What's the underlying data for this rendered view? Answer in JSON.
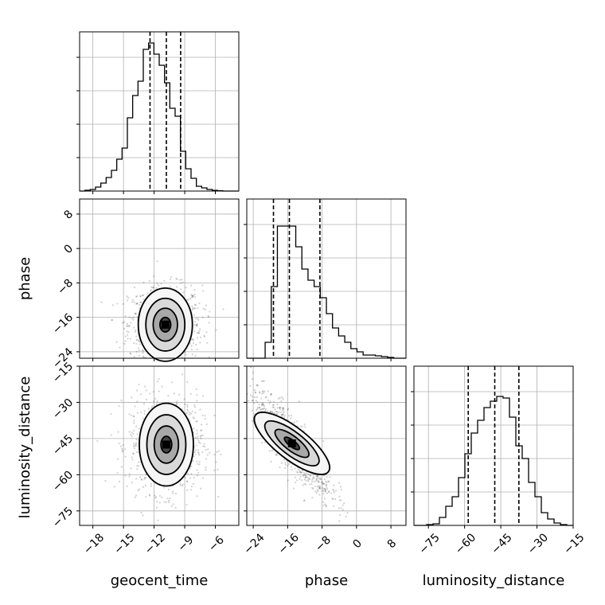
{
  "chart_data": {
    "type": "corner",
    "parameters": [
      "geocent_time",
      "phase",
      "luminosity_distance"
    ],
    "axes": {
      "geocent_time": {
        "label": "geocent_time",
        "ticks": [
          "−18",
          "−15",
          "−12",
          "−9",
          "−6"
        ],
        "range": [
          -19.3,
          -3.7
        ]
      },
      "phase": {
        "label": "phase",
        "ticks": [
          "−24",
          "−16",
          "−8",
          "0",
          "8"
        ],
        "range": [
          -25.5,
          11.5
        ]
      },
      "luminosity_distance": {
        "label": "luminosity_distance",
        "ticks": [
          "−75",
          "−60",
          "−45",
          "−30",
          "−15"
        ],
        "range": [
          -81,
          -15
        ]
      }
    },
    "quantiles": {
      "geocent_time": [
        -12.4,
        -10.8,
        -9.4
      ],
      "phase": [
        -19.3,
        -15.6,
        -8.5
      ],
      "luminosity_distance": [
        -58.5,
        -47.5,
        -37.5
      ]
    },
    "histograms": {
      "geocent_time": [
        0,
        0.005,
        0.01,
        0.025,
        0.05,
        0.085,
        0.13,
        0.2,
        0.27,
        0.46,
        0.6,
        0.69,
        0.89,
        0.93,
        0.86,
        0.79,
        0.68,
        0.52,
        0.47,
        0.25,
        0.14,
        0.08,
        0.03,
        0.02,
        0.01,
        0.004,
        0.002,
        0,
        0,
        0
      ],
      "phase": [
        0,
        0,
        0,
        0.1,
        0.45,
        0.83,
        0.83,
        0.83,
        0.7,
        0.56,
        0.49,
        0.45,
        0.38,
        0.28,
        0.19,
        0.14,
        0.1,
        0.06,
        0.04,
        0.02,
        0.02,
        0.015,
        0.01,
        0.005,
        0,
        0
      ],
      "luminosity_distance": [
        0,
        0,
        0.005,
        0.01,
        0.05,
        0.12,
        0.18,
        0.3,
        0.45,
        0.58,
        0.66,
        0.74,
        0.78,
        0.81,
        0.8,
        0.68,
        0.5,
        0.42,
        0.27,
        0.18,
        0.08,
        0.04,
        0.015,
        0.005,
        0
      ]
    },
    "density_centers": {
      "phase_vs_geocent_time": {
        "x": -10.9,
        "y": -17.7,
        "sx": 1.8,
        "sy": 4.5
      },
      "luminosity_distance_vs_geocent_time": {
        "x": -10.8,
        "y": -47.5,
        "sx": 1.8,
        "sy": 10
      },
      "luminosity_distance_vs_phase": {
        "x": -15,
        "y": -47,
        "r": -0.85
      }
    }
  }
}
